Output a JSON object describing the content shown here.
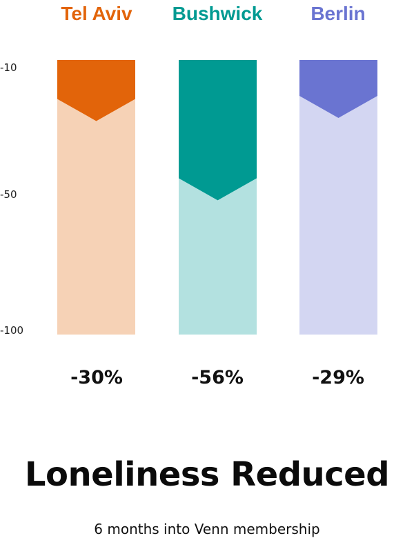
{
  "chart_data": {
    "type": "bar",
    "categories": [
      "Tel Aviv",
      "Bushwick",
      "Berlin"
    ],
    "values": [
      -30,
      -56,
      -29
    ],
    "value_labels": [
      "-30%",
      "-56%",
      "-29%"
    ],
    "y_ticks": [
      "-10",
      "-50",
      "-100"
    ],
    "ylim": [
      -100,
      -10
    ],
    "grid": false,
    "colors": {
      "dark": [
        "#e2640a",
        "#009a92",
        "#6a74d1"
      ],
      "light": [
        "#f6d2b6",
        "#b3e1e0",
        "#d3d6f2"
      ]
    },
    "label_colors": [
      "#e2640a",
      "#009a92",
      "#6a74d1"
    ],
    "title": "Loneliness Reduced",
    "subtitle": "6 months into Venn membership"
  }
}
